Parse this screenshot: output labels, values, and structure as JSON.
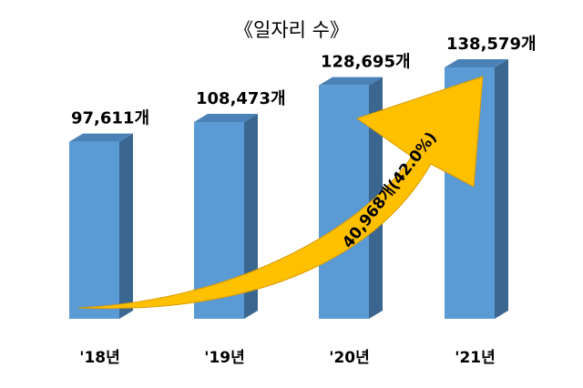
{
  "chart_data": {
    "type": "bar",
    "title": "《일자리 수》",
    "categories": [
      "'18년",
      "'19년",
      "'20년",
      "'21년"
    ],
    "values": [
      97611,
      108473,
      128695,
      138579
    ],
    "value_labels": [
      "97,611개",
      "108,473개",
      "128,695개",
      "138,579개"
    ],
    "ylim": [
      0,
      150000
    ],
    "grid": false,
    "legend": "none",
    "annotation": {
      "type": "arrow",
      "from_category": "'18년",
      "to_category": "'21년",
      "text": "40,968개(42.0%)"
    },
    "colors": {
      "bar_front": "#5b9bd5",
      "bar_side": "#3a6690",
      "bar_top": "#4a82b8",
      "arrow": "#ffc000",
      "arrow_edge": "#d89a00"
    }
  }
}
